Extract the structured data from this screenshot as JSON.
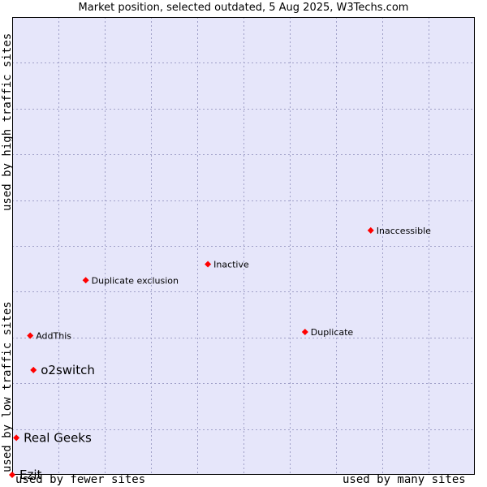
{
  "chart_data": {
    "type": "scatter",
    "title": "Market position, selected outdated, 5 Aug 2025, W3Techs.com",
    "xlabel_low": "used by fewer sites",
    "xlabel_high": "used by many sites",
    "ylabel_low": "used by low traffic sites",
    "ylabel_high": "used by high traffic sites",
    "xlim": [
      0,
      10
    ],
    "ylim": [
      0,
      10
    ],
    "grid": true,
    "colors": {
      "plot_bg": "#e6e6fa",
      "grid": "#a0a0c8",
      "marker": "#ff0000",
      "border": "#000000"
    },
    "points": [
      {
        "label": "Inaccessible",
        "x": 7.75,
        "y": 5.34,
        "emphasis": false
      },
      {
        "label": "Inactive",
        "x": 4.23,
        "y": 4.6,
        "emphasis": false
      },
      {
        "label": "Duplicate exclusion",
        "x": 1.59,
        "y": 4.25,
        "emphasis": false
      },
      {
        "label": "Duplicate",
        "x": 6.33,
        "y": 3.12,
        "emphasis": false
      },
      {
        "label": "AddThis",
        "x": 0.39,
        "y": 3.04,
        "emphasis": false
      },
      {
        "label": "o2switch",
        "x": 0.46,
        "y": 2.29,
        "emphasis": true
      },
      {
        "label": "Real Geeks",
        "x": 0.09,
        "y": 0.81,
        "emphasis": true
      },
      {
        "label": "Ezit",
        "x": 0.0,
        "y": 0.0,
        "emphasis": true
      }
    ]
  }
}
